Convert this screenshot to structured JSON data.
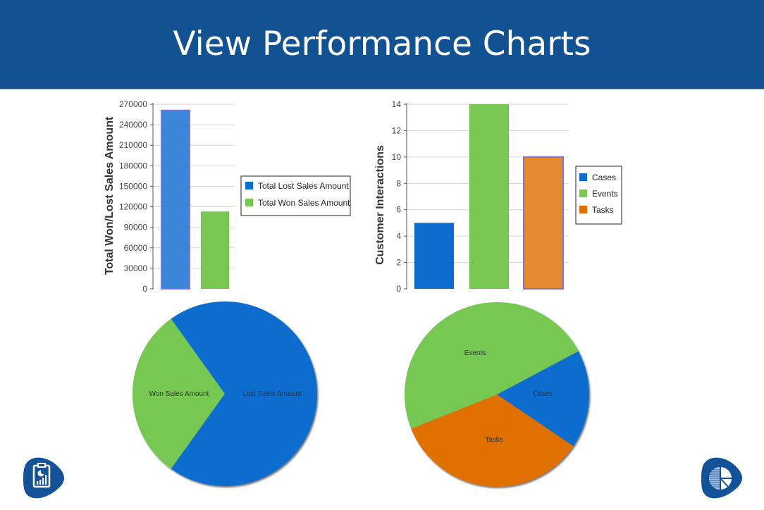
{
  "header": {
    "title": "View Performance Charts",
    "background_color": "#125192"
  },
  "colors": {
    "blue": "#0c6dce",
    "blue_bar": "#3b86d6",
    "green": "#77c752",
    "orange": "#e06f00",
    "orange_bar": "#e58a30",
    "highlight_border": "#7b73d6"
  },
  "chart_data": [
    {
      "id": "won-lost-bar",
      "type": "bar",
      "title": "",
      "xlabel": "",
      "ylabel": "Total Won/Lost Sales Amount",
      "ylim": [
        0,
        270000
      ],
      "yticks": [
        "0",
        "30000",
        "60000",
        "90000",
        "120000",
        "150000",
        "180000",
        "210000",
        "240000",
        "270000"
      ],
      "grid": true,
      "legend_position": "right",
      "categories": [
        "Total Lost Sales Amount",
        "Total Won Sales Amount"
      ],
      "values": [
        261000,
        113000
      ],
      "legend": [
        {
          "label": "Total Lost Sales Amount",
          "color": "#0c6dce"
        },
        {
          "label": "Total Won Sales Amount",
          "color": "#77c752"
        }
      ]
    },
    {
      "id": "interactions-bar",
      "type": "bar",
      "title": "",
      "xlabel": "",
      "ylabel": "Customer Interactions",
      "ylim": [
        0,
        14
      ],
      "yticks": [
        "0",
        "2",
        "4",
        "6",
        "8",
        "10",
        "12",
        "14"
      ],
      "grid": true,
      "legend_position": "right",
      "categories": [
        "Cases",
        "Events",
        "Tasks"
      ],
      "values": [
        5,
        14,
        10
      ],
      "legend": [
        {
          "label": "Cases",
          "color": "#0c6dce"
        },
        {
          "label": "Events",
          "color": "#77c752"
        },
        {
          "label": "Tasks",
          "color": "#e06f00"
        }
      ]
    },
    {
      "id": "won-lost-pie",
      "type": "pie",
      "title": "",
      "slices": [
        {
          "label": "Lost Sales Amount",
          "value": 261000,
          "color": "#0c6dce"
        },
        {
          "label": "Won Sales Amount",
          "value": 113000,
          "color": "#77c752"
        }
      ]
    },
    {
      "id": "interactions-pie",
      "type": "pie",
      "title": "",
      "slices": [
        {
          "label": "Cases",
          "value": 5,
          "color": "#0c6dce"
        },
        {
          "label": "Events",
          "value": 14,
          "color": "#77c752"
        },
        {
          "label": "Tasks",
          "value": 10,
          "color": "#e06f00"
        }
      ]
    }
  ],
  "icons": {
    "bottom_left": "clipboard-chart-icon",
    "bottom_right": "pie-logo-icon"
  }
}
